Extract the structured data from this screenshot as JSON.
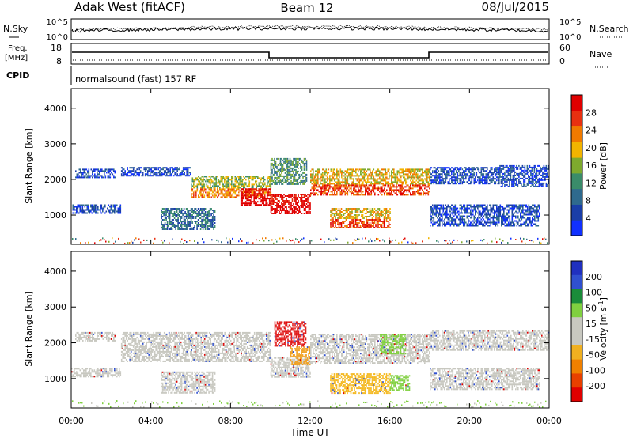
{
  "header": {
    "title": "Adak West (fitACF)",
    "beam": "Beam 12",
    "date": "08/Jul/2015"
  },
  "panels": {
    "nsky_label": "N.Sky",
    "nsky_ticks": [
      "10^5",
      "10^0"
    ],
    "nsearch_label": "N.Search",
    "nsearch_ticks": [
      "10^5",
      "10^0"
    ],
    "freq_label_1": "Freq.",
    "freq_label_2": "[MHz]",
    "freq_ticks": [
      "18",
      "8"
    ],
    "nave_label": "Nave",
    "nave_ticks": [
      "60",
      "0"
    ],
    "cpid_label": "CPID",
    "cpid_text": "normalsound (fast) 157 RF"
  },
  "colors": {
    "power_scale": [
      "#1030ff",
      "#1a3ea8",
      "#2f6a8e",
      "#3a8c6a",
      "#7eaa2e",
      "#f2b400",
      "#f07a00",
      "#e83010",
      "#e00000"
    ],
    "velocity_scale": [
      "#2030c0",
      "#3050d0",
      "#1a8c3a",
      "#80d040",
      "#c8c8c0",
      "#c8c8c0",
      "#f0b020",
      "#f08000",
      "#e84000",
      "#e00000"
    ]
  },
  "chart_data": [
    {
      "type": "heatmap",
      "name": "power",
      "title": "",
      "xlabel": "",
      "ylabel": "Slant Range [km]",
      "xlim": [
        "00:00",
        "24:00"
      ],
      "ylim": [
        180,
        4550
      ],
      "y_ticks": [
        "1000",
        "2000",
        "3000",
        "4000"
      ],
      "colorbar_label": "Power [dB]",
      "colorbar_ticks": [
        "4",
        "8",
        "12",
        "16",
        "20",
        "24",
        "28"
      ],
      "bands": [
        {
          "start_hr": 0.2,
          "end_hr": 2.2,
          "range_km": [
            2050,
            2300
          ],
          "level": 1
        },
        {
          "start_hr": 0.0,
          "end_hr": 2.5,
          "range_km": [
            1050,
            1300
          ],
          "level": 1
        },
        {
          "start_hr": 2.5,
          "end_hr": 6.0,
          "range_km": [
            2100,
            2350
          ],
          "level": 1
        },
        {
          "start_hr": 6.0,
          "end_hr": 10.0,
          "range_km": [
            1500,
            2100
          ],
          "level": 4
        },
        {
          "start_hr": 8.5,
          "end_hr": 10.0,
          "range_km": [
            1300,
            1750
          ],
          "level": 8
        },
        {
          "start_hr": 4.5,
          "end_hr": 7.2,
          "range_km": [
            600,
            1200
          ],
          "level": 2
        },
        {
          "start_hr": 10.0,
          "end_hr": 12.0,
          "range_km": [
            1050,
            1600
          ],
          "level": 8
        },
        {
          "start_hr": 10.0,
          "end_hr": 11.8,
          "range_km": [
            1850,
            2600
          ],
          "level": 3
        },
        {
          "start_hr": 12.0,
          "end_hr": 18.0,
          "range_km": [
            1550,
            2300
          ],
          "level": 5
        },
        {
          "start_hr": 13.0,
          "end_hr": 16.0,
          "range_km": [
            650,
            1200
          ],
          "level": 5
        },
        {
          "start_hr": 18.0,
          "end_hr": 21.5,
          "range_km": [
            1900,
            2350
          ],
          "level": 1
        },
        {
          "start_hr": 18.0,
          "end_hr": 23.5,
          "range_km": [
            700,
            1300
          ],
          "level": 1
        },
        {
          "start_hr": 21.5,
          "end_hr": 24.0,
          "range_km": [
            1800,
            2400
          ],
          "level": 1
        }
      ]
    },
    {
      "type": "heatmap",
      "name": "velocity",
      "title": "",
      "xlabel": "Time UT",
      "ylabel": "Slant Range [km]",
      "xlim": [
        "00:00",
        "24:00"
      ],
      "ylim": [
        180,
        4550
      ],
      "x_ticks": [
        "00:00",
        "04:00",
        "08:00",
        "12:00",
        "16:00",
        "20:00",
        "00:00"
      ],
      "y_ticks": [
        "1000",
        "2000",
        "3000",
        "4000"
      ],
      "colorbar_label": "Velocity [m s^-1]",
      "colorbar_ticks": [
        "200",
        "100",
        "50",
        "15",
        "-15",
        "-50",
        "-100",
        "-200"
      ],
      "bands": [
        {
          "start_hr": 0.2,
          "end_hr": 2.2,
          "range_km": [
            2050,
            2300
          ],
          "vel": "grey"
        },
        {
          "start_hr": 0.0,
          "end_hr": 2.5,
          "range_km": [
            1050,
            1300
          ],
          "vel": "grey"
        },
        {
          "start_hr": 2.5,
          "end_hr": 10.0,
          "range_km": [
            1500,
            2300
          ],
          "vel": "grey"
        },
        {
          "start_hr": 4.5,
          "end_hr": 7.2,
          "range_km": [
            600,
            1200
          ],
          "vel": "grey"
        },
        {
          "start_hr": 10.0,
          "end_hr": 12.0,
          "range_km": [
            1050,
            1600
          ],
          "vel": "grey"
        },
        {
          "start_hr": 11.0,
          "end_hr": 12.0,
          "range_km": [
            1400,
            1900
          ],
          "vel": "orange"
        },
        {
          "start_hr": 10.2,
          "end_hr": 11.8,
          "range_km": [
            1900,
            2600
          ],
          "vel": "red"
        },
        {
          "start_hr": 12.0,
          "end_hr": 18.0,
          "range_km": [
            1450,
            2250
          ],
          "vel": "grey"
        },
        {
          "start_hr": 15.5,
          "end_hr": 16.8,
          "range_km": [
            1700,
            2250
          ],
          "vel": "green"
        },
        {
          "start_hr": 13.0,
          "end_hr": 16.0,
          "range_km": [
            600,
            1150
          ],
          "vel": "yellow"
        },
        {
          "start_hr": 16.0,
          "end_hr": 17.0,
          "range_km": [
            700,
            1100
          ],
          "vel": "green"
        },
        {
          "start_hr": 18.0,
          "end_hr": 24.0,
          "range_km": [
            1800,
            2350
          ],
          "vel": "grey"
        },
        {
          "start_hr": 18.0,
          "end_hr": 23.5,
          "range_km": [
            700,
            1300
          ],
          "vel": "grey"
        }
      ]
    }
  ]
}
